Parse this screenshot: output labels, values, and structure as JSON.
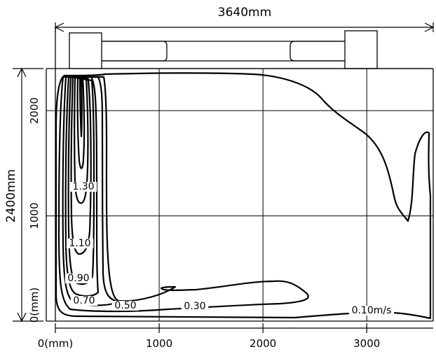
{
  "dimensions": {
    "width_label": "3640mm",
    "height_label": "2400mm"
  },
  "x_axis": {
    "ticks": [
      {
        "value": 0,
        "label": "0(mm)"
      },
      {
        "value": 1000,
        "label": "1000"
      },
      {
        "value": 2000,
        "label": "2000"
      },
      {
        "value": 3000,
        "label": "3000"
      }
    ],
    "range": [
      0,
      3640
    ]
  },
  "y_axis": {
    "ticks": [
      {
        "value": 0,
        "label": "0(mm)"
      },
      {
        "value": 1000,
        "label": "1000"
      },
      {
        "value": 2000,
        "label": "2000"
      }
    ],
    "range": [
      0,
      2400
    ]
  },
  "contour_labels": [
    {
      "value": "1.30"
    },
    {
      "value": "1.10"
    },
    {
      "value": "0.90"
    },
    {
      "value": "0.70"
    },
    {
      "value": "0.50"
    },
    {
      "value": "0.30"
    },
    {
      "value": "0.10m/s"
    }
  ],
  "colors": {
    "line": "#000000",
    "grid": "#000000",
    "background": "#ffffff"
  }
}
